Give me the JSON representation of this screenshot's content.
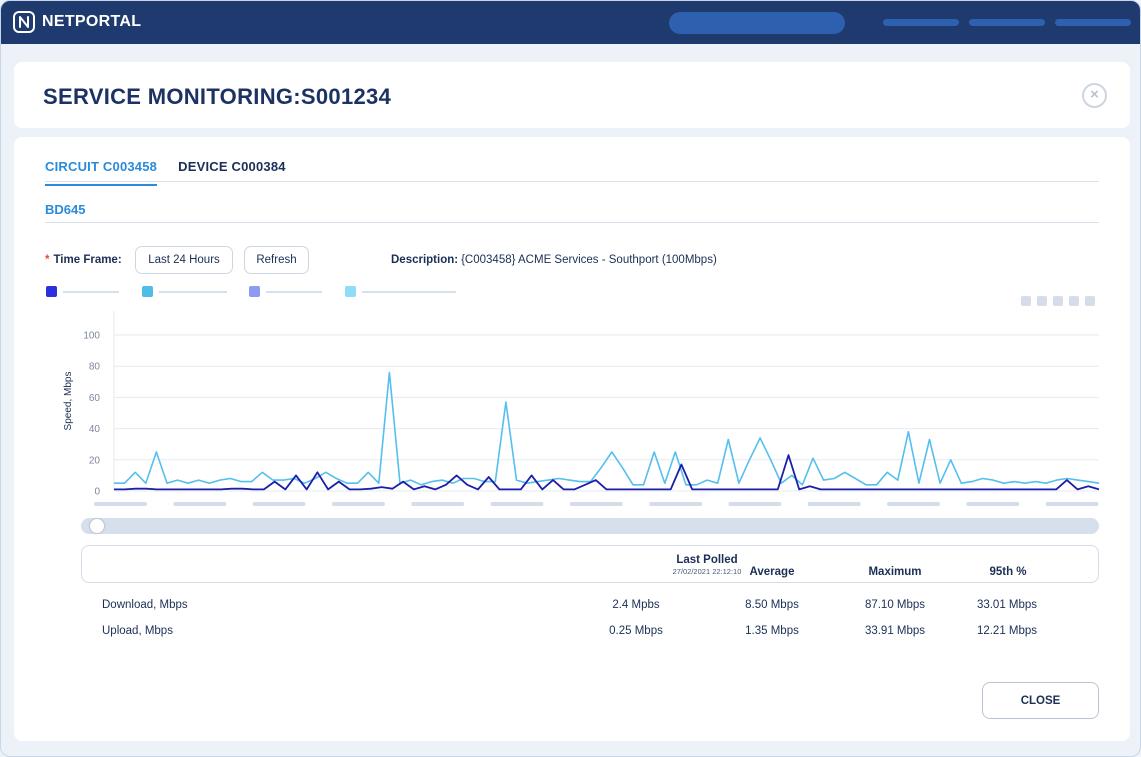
{
  "app": {
    "name": "NETPORTAL"
  },
  "page": {
    "title": "SERVICE MONITORING:S001234"
  },
  "tabs": [
    {
      "label": "CIRCUIT C003458",
      "active": true
    },
    {
      "label": "DEVICE C000384",
      "active": false
    }
  ],
  "subtabs": [
    {
      "label": "BD645",
      "active": true
    }
  ],
  "controls": {
    "required_mark": "*",
    "timeframe_label": "Time Frame:",
    "timeframe_button": "Last 24 Hours",
    "refresh_button": "Refresh",
    "description_label": "Description:",
    "description_value": "{C003458} ACME Services - Southport (100Mbps)"
  },
  "legend": [
    {
      "color": "#2b2fe0"
    },
    {
      "color": "#4fbde8"
    },
    {
      "color": "#8e9bf2"
    },
    {
      "color": "#8fdcf7"
    }
  ],
  "chart_data": {
    "type": "line",
    "ylabel": "Speed, Mbps",
    "ylim": [
      0,
      100
    ],
    "yticks": [
      "0",
      "20",
      "40",
      "60",
      "80",
      "100"
    ],
    "grid": true,
    "series": [
      {
        "color": "#55bfee",
        "values": [
          5,
          5,
          12,
          5,
          25,
          5,
          7,
          5,
          7,
          5,
          7,
          8,
          6,
          6,
          12,
          7,
          7,
          8,
          5,
          8,
          12,
          8,
          5,
          5,
          12,
          5,
          76,
          5,
          7,
          4,
          6,
          7,
          5,
          8,
          8,
          6,
          6,
          57,
          7,
          5,
          6,
          7,
          8,
          7,
          6,
          6,
          15,
          25,
          15,
          4,
          4,
          25,
          5,
          25,
          4,
          4,
          7,
          5,
          33,
          5,
          20,
          34,
          20,
          5,
          10,
          4,
          21,
          7,
          8,
          12,
          8,
          4,
          4,
          12,
          7,
          38,
          5,
          33,
          5,
          20,
          5,
          6,
          8,
          7,
          5,
          6,
          5,
          6,
          5,
          7,
          8,
          7,
          6,
          5
        ]
      },
      {
        "color": "#1c1fa8",
        "values": [
          1,
          1,
          1.5,
          1.5,
          1,
          1,
          1,
          1,
          1,
          1,
          1,
          1.5,
          1.5,
          1,
          1,
          6,
          1,
          10,
          1,
          12,
          1,
          6,
          1,
          1,
          1.5,
          2.5,
          1.5,
          6,
          1,
          3,
          1,
          4,
          10,
          4,
          1,
          9,
          1,
          1,
          1,
          10,
          1,
          7,
          1,
          1,
          4,
          7,
          1,
          1,
          1,
          1,
          1,
          1,
          1,
          17,
          1,
          1,
          1,
          1,
          1,
          1,
          1,
          1,
          1,
          23,
          1,
          3,
          1,
          1,
          1,
          1,
          1,
          1,
          1,
          1,
          1,
          1,
          1,
          1,
          1,
          1,
          1,
          1,
          1,
          1,
          1,
          1,
          1,
          1,
          1,
          7,
          1,
          3,
          1
        ]
      }
    ]
  },
  "stats": {
    "columns": [
      "Last Polled",
      "Average",
      "Maximum",
      "95th %"
    ],
    "last_polled_time": "27/02/2021 22:12:10",
    "rows": [
      {
        "label": "Download, Mbps",
        "last": "2.4 Mpbs",
        "average": "8.50 Mbps",
        "maximum": "87.10 Mbps",
        "p95": "33.01 Mbps"
      },
      {
        "label": "Upload, Mbps",
        "last": "0.25 Mbps",
        "average": "1.35 Mbps",
        "maximum": "33.91 Mbps",
        "p95": "12.21 Mbps"
      }
    ]
  },
  "footer": {
    "close_button": "CLOSE"
  }
}
